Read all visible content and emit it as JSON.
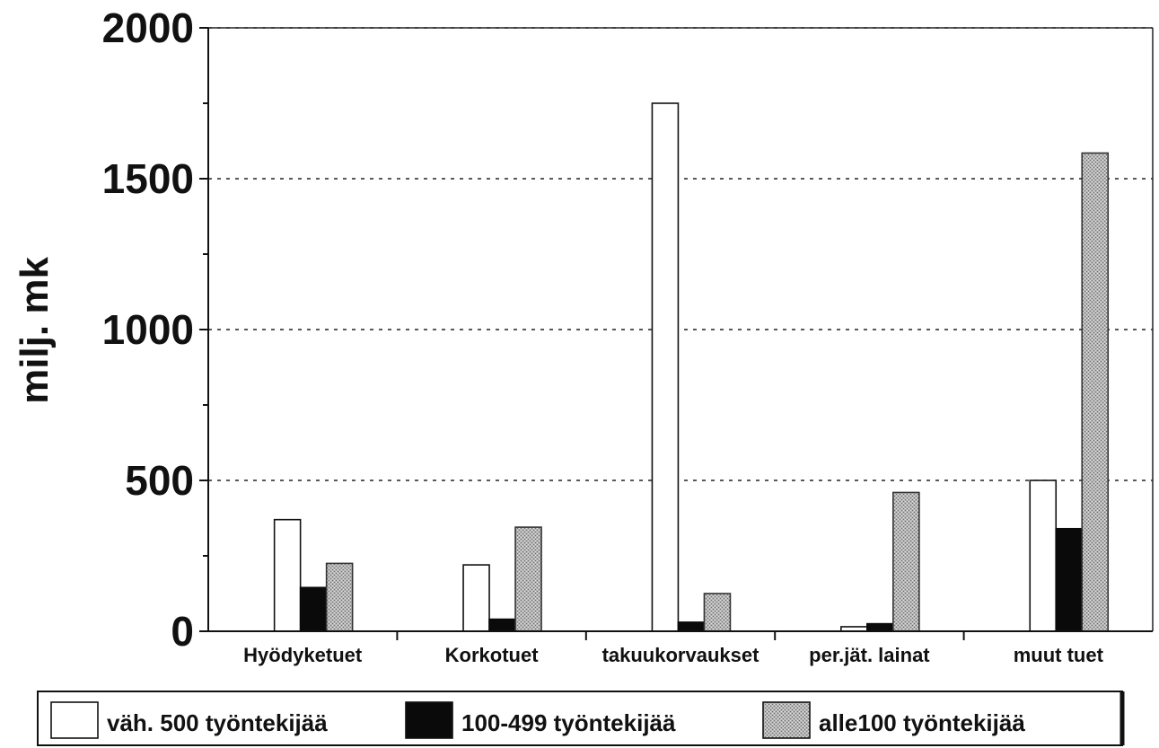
{
  "chart_data": {
    "type": "bar",
    "ylabel": "milj. mk",
    "xlabel": "",
    "title": "",
    "ylim": [
      0,
      2000
    ],
    "yticks": [
      0,
      500,
      1000,
      1500,
      2000
    ],
    "grid": "dotted horizontal at major ticks",
    "legend_position": "bottom",
    "categories": [
      "Hyödyketuet",
      "Korkotuet",
      "takuukorvaukset",
      "per.jät. lainat",
      "muut tuet"
    ],
    "series": [
      {
        "name": "väh. 500 työntekijää",
        "values": [
          370,
          220,
          1750,
          15,
          500
        ],
        "color": "#ffffff"
      },
      {
        "name": "100-499 työntekijää",
        "values": [
          145,
          40,
          30,
          25,
          340
        ],
        "color": "#0a0a0a"
      },
      {
        "name": "alle100 työntekijää",
        "values": [
          225,
          345,
          125,
          460,
          1585
        ],
        "color": "#a9a9a9"
      }
    ]
  }
}
